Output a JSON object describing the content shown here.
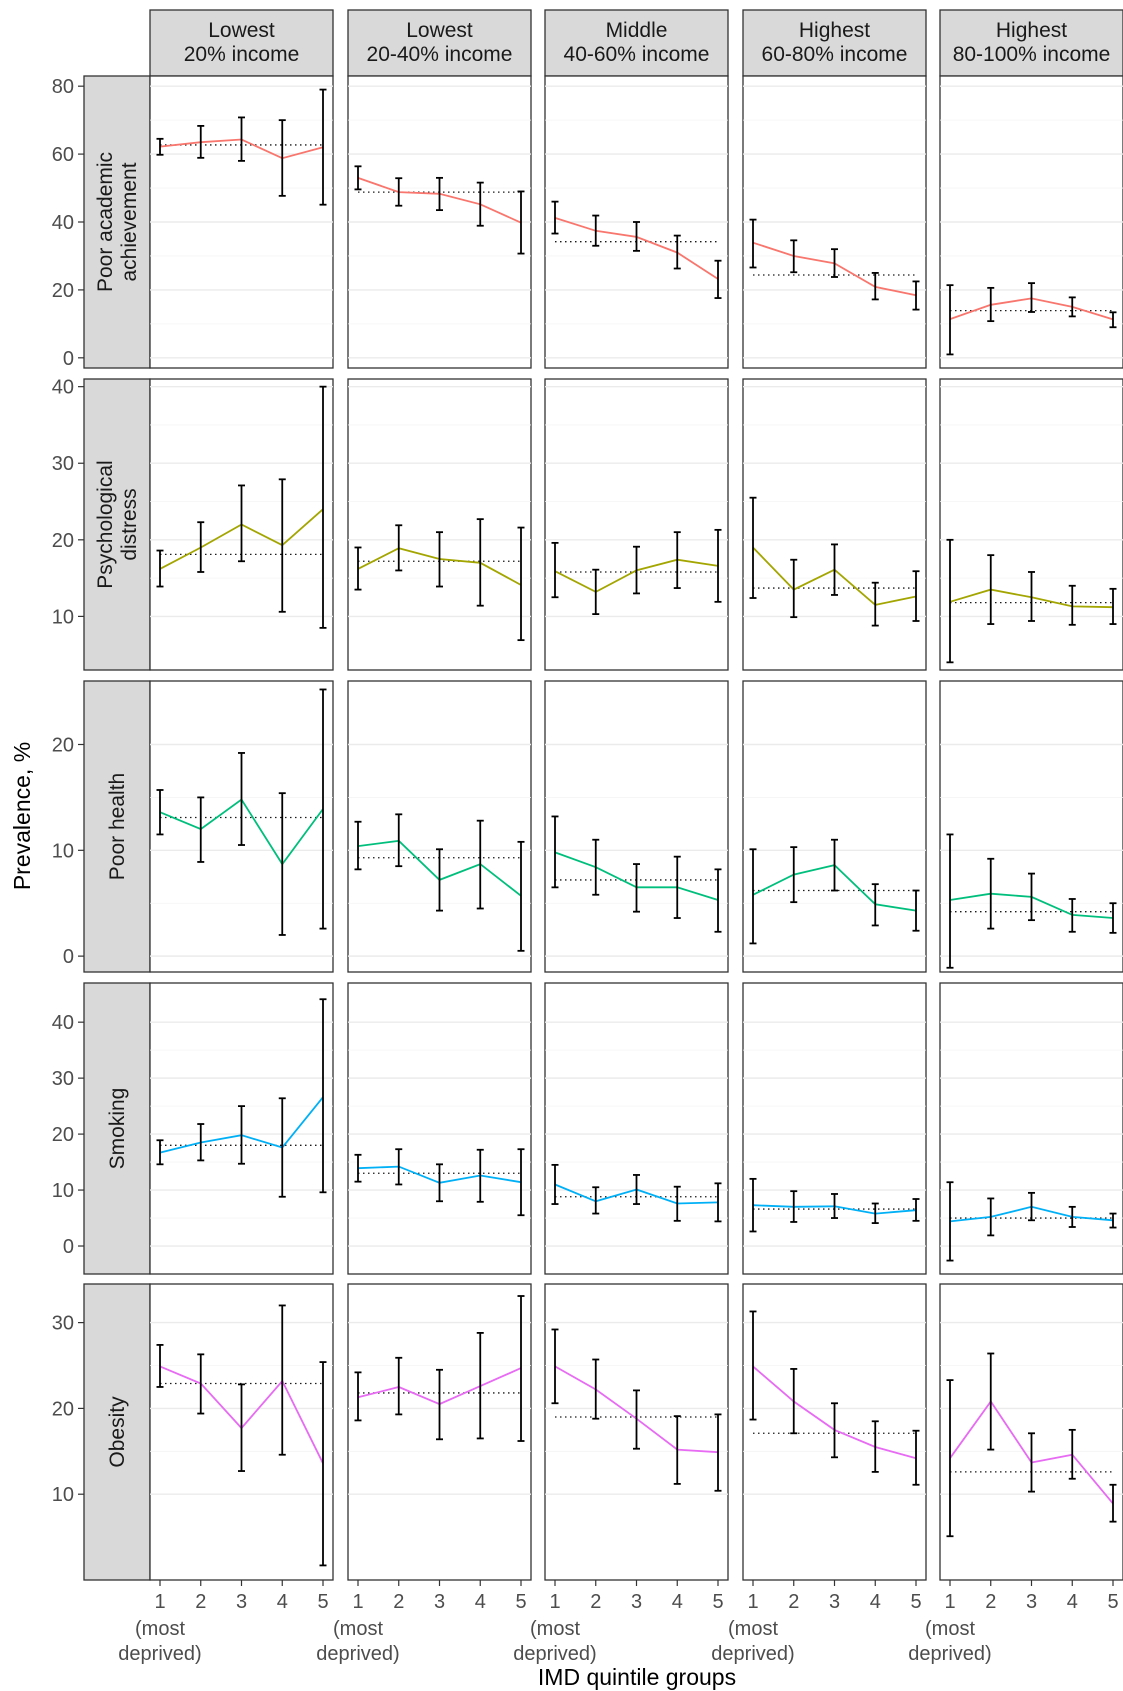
{
  "chart_data": {
    "type": "line",
    "xlabel": "IMD quintile groups",
    "ylabel": "Prevalence, %",
    "x": [
      1,
      2,
      3,
      4,
      5
    ],
    "x_tick_labels": [
      "1",
      "2",
      "3",
      "4",
      "5"
    ],
    "x_sublabel_line1": "(most",
    "x_sublabel_line2": "deprived)",
    "columns": [
      [
        "Lowest",
        "20% income"
      ],
      [
        "Lowest",
        "20-40% income"
      ],
      [
        "Middle",
        "40-60% income"
      ],
      [
        "Highest",
        "60-80% income"
      ],
      [
        "Highest",
        "80-100% income"
      ]
    ],
    "rows": [
      {
        "label_lines": [
          "Poor academic",
          "achievement"
        ],
        "color": "#F8766D",
        "ylim": [
          -3,
          83
        ],
        "yticks": [
          0,
          20,
          40,
          60,
          80
        ],
        "ytick_labels": [
          "0",
          "20",
          "40",
          "60",
          "80"
        ],
        "panels": [
          {
            "values": [
              62.2,
              63.5,
              64.3,
              58.8,
              62.0
            ],
            "lower": [
              59.8,
              58.9,
              58.0,
              47.7,
              45.1
            ],
            "upper": [
              64.5,
              68.3,
              70.8,
              70.0,
              79.0
            ],
            "ref": 62.7
          },
          {
            "values": [
              53.0,
              48.8,
              48.3,
              45.2,
              39.8
            ],
            "lower": [
              49.6,
              44.8,
              43.5,
              38.9,
              30.7
            ],
            "upper": [
              56.4,
              52.9,
              53.0,
              51.6,
              49.0
            ],
            "ref": 48.8
          },
          {
            "values": [
              41.2,
              37.4,
              35.6,
              31.0,
              23.2
            ],
            "lower": [
              36.6,
              33.0,
              31.5,
              26.3,
              17.6
            ],
            "upper": [
              46.0,
              41.9,
              40.0,
              36.0,
              28.6
            ],
            "ref": 34.2
          },
          {
            "values": [
              33.9,
              30.0,
              27.8,
              20.9,
              18.4
            ],
            "lower": [
              26.6,
              25.2,
              23.8,
              17.2,
              14.2
            ],
            "upper": [
              40.7,
              34.6,
              32.0,
              25.0,
              22.5
            ],
            "ref": 24.4
          },
          {
            "values": [
              11.4,
              15.6,
              17.5,
              15.0,
              11.3
            ],
            "lower": [
              1.0,
              10.8,
              13.5,
              12.2,
              9.0
            ],
            "upper": [
              21.4,
              20.6,
              22.0,
              17.8,
              13.4
            ],
            "ref": 13.9
          }
        ]
      },
      {
        "label_lines": [
          "Psychological",
          "distress"
        ],
        "color": "#A3A500",
        "ylim": [
          3,
          41
        ],
        "yticks": [
          10,
          20,
          30,
          40
        ],
        "ytick_labels": [
          "10",
          "20",
          "30",
          "40"
        ],
        "panels": [
          {
            "values": [
              16.2,
              19.0,
              22.0,
              19.3,
              24.0
            ],
            "lower": [
              13.9,
              15.8,
              17.2,
              10.6,
              8.5
            ],
            "upper": [
              18.6,
              22.3,
              27.1,
              27.9,
              40.0
            ],
            "ref": 18.1
          },
          {
            "values": [
              16.2,
              18.9,
              17.5,
              17.0,
              14.1
            ],
            "lower": [
              13.5,
              16.0,
              13.9,
              11.4,
              6.9
            ],
            "upper": [
              19.0,
              21.9,
              21.0,
              22.7,
              21.6
            ],
            "ref": 17.2
          },
          {
            "values": [
              15.9,
              13.2,
              16.0,
              17.4,
              16.6
            ],
            "lower": [
              12.5,
              10.3,
              13.0,
              13.7,
              11.9
            ],
            "upper": [
              19.6,
              16.1,
              19.1,
              21.0,
              21.3
            ],
            "ref": 15.8
          },
          {
            "values": [
              19.0,
              13.5,
              16.1,
              11.5,
              12.6
            ],
            "lower": [
              12.4,
              9.9,
              12.8,
              8.8,
              9.4
            ],
            "upper": [
              25.5,
              17.4,
              19.4,
              14.4,
              15.9
            ],
            "ref": 13.7
          },
          {
            "values": [
              11.9,
              13.5,
              12.5,
              11.3,
              11.2
            ],
            "lower": [
              4.0,
              9.0,
              9.4,
              8.9,
              9.0
            ],
            "upper": [
              20.0,
              18.0,
              15.8,
              14.0,
              13.6
            ],
            "ref": 11.8
          }
        ]
      },
      {
        "label_lines": [
          "Poor health"
        ],
        "color": "#00BF7D",
        "ylim": [
          -1.5,
          26
        ],
        "yticks": [
          0,
          10,
          20
        ],
        "ytick_labels": [
          "0",
          "10",
          "20"
        ],
        "panels": [
          {
            "values": [
              13.6,
              12.0,
              14.8,
              8.7,
              13.9
            ],
            "lower": [
              11.5,
              8.9,
              10.5,
              2.0,
              2.6
            ],
            "upper": [
              15.7,
              15.0,
              19.2,
              15.4,
              25.2
            ],
            "ref": 13.1
          },
          {
            "values": [
              10.4,
              10.9,
              7.2,
              8.7,
              5.7
            ],
            "lower": [
              8.2,
              8.5,
              4.3,
              4.5,
              0.5
            ],
            "upper": [
              12.7,
              13.4,
              10.1,
              12.8,
              10.8
            ],
            "ref": 9.3
          },
          {
            "values": [
              9.8,
              8.4,
              6.5,
              6.5,
              5.3
            ],
            "lower": [
              6.5,
              5.8,
              4.2,
              3.6,
              2.3
            ],
            "upper": [
              13.2,
              11.0,
              8.7,
              9.4,
              8.2
            ],
            "ref": 7.2
          },
          {
            "values": [
              5.8,
              7.7,
              8.6,
              4.9,
              4.3
            ],
            "lower": [
              1.2,
              5.1,
              6.2,
              2.9,
              2.4
            ],
            "upper": [
              10.1,
              10.3,
              11.0,
              6.8,
              6.2
            ],
            "ref": 6.2
          },
          {
            "values": [
              5.3,
              5.9,
              5.6,
              3.9,
              3.6
            ],
            "lower": [
              -1.1,
              2.6,
              3.4,
              2.3,
              2.2
            ],
            "upper": [
              11.5,
              9.2,
              7.8,
              5.4,
              5.0
            ],
            "ref": 4.2
          }
        ]
      },
      {
        "label_lines": [
          "Smoking"
        ],
        "color": "#00B0F6",
        "ylim": [
          -5,
          47
        ],
        "yticks": [
          0,
          10,
          20,
          30,
          40
        ],
        "ytick_labels": [
          "0",
          "10",
          "20",
          "30",
          "40"
        ],
        "panels": [
          {
            "values": [
              16.7,
              18.5,
              19.8,
              17.6,
              26.6
            ],
            "lower": [
              14.6,
              15.3,
              14.7,
              8.8,
              9.6
            ],
            "upper": [
              18.9,
              21.8,
              25.0,
              26.4,
              44.1
            ],
            "ref": 18.0
          },
          {
            "values": [
              13.9,
              14.2,
              11.3,
              12.6,
              11.4
            ],
            "lower": [
              11.5,
              11.0,
              8.0,
              7.9,
              5.5
            ],
            "upper": [
              16.3,
              17.3,
              14.6,
              17.2,
              17.3
            ],
            "ref": 13.0
          },
          {
            "values": [
              11.0,
              8.0,
              10.1,
              7.6,
              7.8
            ],
            "lower": [
              7.5,
              5.8,
              7.5,
              4.5,
              4.4
            ],
            "upper": [
              14.5,
              10.5,
              12.7,
              10.6,
              11.2
            ],
            "ref": 8.8
          },
          {
            "values": [
              7.3,
              7.0,
              7.1,
              5.8,
              6.4
            ],
            "lower": [
              2.6,
              4.3,
              5.0,
              4.1,
              4.5
            ],
            "upper": [
              12.0,
              9.8,
              9.3,
              7.6,
              8.4
            ],
            "ref": 6.6
          },
          {
            "values": [
              4.4,
              5.2,
              7.0,
              5.2,
              4.6
            ],
            "lower": [
              -2.6,
              1.9,
              4.6,
              3.4,
              3.3
            ],
            "upper": [
              11.4,
              8.5,
              9.5,
              7.0,
              5.8
            ],
            "ref": 5.0
          }
        ]
      },
      {
        "label_lines": [
          "Obesity"
        ],
        "color": "#E76BF3",
        "ylim": [
          0,
          34.5
        ],
        "yticks": [
          10,
          20,
          30
        ],
        "ytick_labels": [
          "10",
          "20",
          "30"
        ],
        "panels": [
          {
            "values": [
              24.9,
              22.9,
              17.7,
              23.2,
              13.6
            ],
            "lower": [
              22.5,
              19.4,
              12.7,
              14.6,
              1.7
            ],
            "upper": [
              27.4,
              26.3,
              22.8,
              32.0,
              25.4
            ],
            "ref": 22.9
          },
          {
            "values": [
              21.3,
              22.5,
              20.5,
              22.6,
              24.7
            ],
            "lower": [
              18.6,
              19.3,
              16.4,
              16.5,
              16.2
            ],
            "upper": [
              24.2,
              25.9,
              24.5,
              28.8,
              33.1
            ],
            "ref": 21.8
          },
          {
            "values": [
              24.9,
              22.2,
              18.8,
              15.2,
              14.9
            ],
            "lower": [
              20.6,
              18.8,
              15.3,
              11.2,
              10.4
            ],
            "upper": [
              29.2,
              25.7,
              22.1,
              19.1,
              19.3
            ],
            "ref": 19.0
          },
          {
            "values": [
              24.9,
              20.8,
              17.5,
              15.5,
              14.2
            ],
            "lower": [
              18.7,
              17.1,
              14.3,
              12.6,
              11.1
            ],
            "upper": [
              31.3,
              24.6,
              20.6,
              18.5,
              17.4
            ],
            "ref": 17.1
          },
          {
            "values": [
              14.2,
              20.8,
              13.7,
              14.6,
              8.9
            ],
            "lower": [
              5.1,
              15.2,
              10.3,
              11.8,
              6.8
            ],
            "upper": [
              23.3,
              26.4,
              17.1,
              17.5,
              11.1
            ],
            "ref": 12.6
          }
        ]
      }
    ]
  }
}
